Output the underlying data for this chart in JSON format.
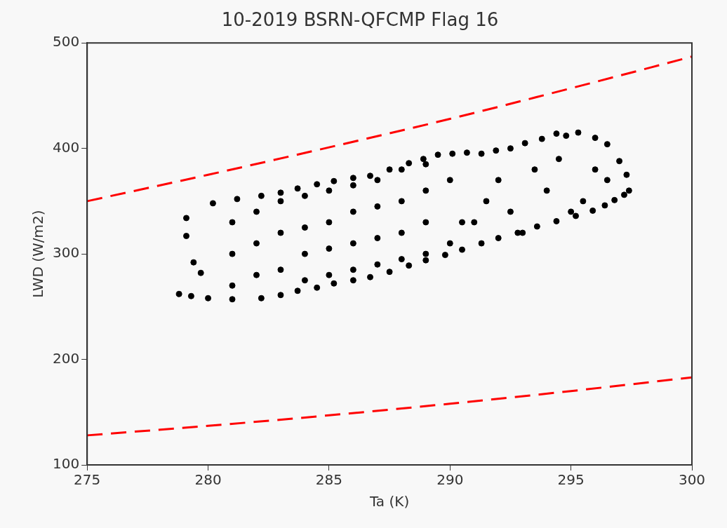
{
  "chart_data": {
    "type": "scatter",
    "title": "10-2019 BSRN-QFCMP Flag 16",
    "xlabel": "Ta (K)",
    "ylabel": "LWD (W/m2)",
    "xlim": [
      275,
      300
    ],
    "xticks": [
      275,
      280,
      285,
      290,
      295,
      300
    ],
    "ylim": [
      100,
      500
    ],
    "yticks": [
      100,
      200,
      300,
      400,
      500
    ],
    "grid": false,
    "marker": "circle",
    "series": [
      {
        "color": "#000000",
        "x": [
          278.8,
          279.3,
          280.0,
          281.0,
          282.2,
          283.0,
          283.7,
          284.5,
          285.2,
          286.0,
          286.7,
          287.5,
          288.3,
          289.0,
          289.8,
          290.5,
          291.3,
          292.0,
          292.8,
          293.6,
          294.4,
          295.2,
          295.9,
          296.4,
          296.8,
          297.2,
          297.4,
          297.3,
          297.0,
          296.5,
          296.0,
          295.3,
          294.8,
          294.4,
          293.8,
          293.1,
          292.5,
          291.9,
          291.3,
          290.7,
          290.1,
          289.5,
          288.9,
          288.3,
          287.5,
          286.7,
          286.0,
          285.2,
          284.5,
          283.7,
          283.0,
          282.2,
          281.2,
          280.2,
          279.1,
          279.1,
          279.4,
          279.7,
          281.0,
          281.0,
          281.0,
          282.0,
          282.0,
          282.0,
          283.0,
          283.0,
          283.0,
          284.0,
          284.0,
          284.0,
          284.0,
          285.0,
          285.0,
          285.0,
          285.0,
          286.0,
          286.0,
          286.0,
          286.0,
          287.0,
          287.0,
          287.0,
          287.0,
          288.0,
          288.0,
          288.0,
          288.0,
          289.0,
          289.0,
          289.0,
          289.0,
          290.0,
          290.0,
          290.5,
          291.5,
          292.0,
          292.5,
          293.5,
          294.0,
          294.5,
          295.5,
          296.0,
          296.5,
          295.0,
          293.0,
          291.0
        ],
        "values": [
          262,
          260,
          258,
          257,
          258,
          261,
          265,
          268,
          272,
          275,
          278,
          283,
          289,
          294,
          299,
          304,
          310,
          315,
          320,
          326,
          331,
          336,
          341,
          346,
          351,
          356,
          360,
          375,
          388,
          404,
          410,
          415,
          412,
          414,
          409,
          405,
          400,
          398,
          395,
          396,
          395,
          394,
          390,
          386,
          380,
          374,
          372,
          369,
          366,
          362,
          358,
          355,
          352,
          348,
          334,
          317,
          292,
          282,
          270,
          300,
          330,
          280,
          310,
          340,
          285,
          320,
          350,
          275,
          300,
          325,
          355,
          280,
          305,
          330,
          360,
          285,
          310,
          340,
          365,
          290,
          315,
          345,
          370,
          295,
          320,
          350,
          380,
          300,
          330,
          360,
          385,
          310,
          370,
          330,
          350,
          370,
          340,
          380,
          360,
          390,
          350,
          380,
          370,
          340,
          320,
          330
        ]
      },
      {
        "type": "line",
        "color": "#ff0000",
        "line_style": "dashed",
        "marker": "none",
        "x": [
          275,
          280,
          285,
          290,
          295,
          300
        ],
        "values": [
          350,
          375,
          401,
          428,
          457,
          487
        ]
      },
      {
        "type": "line",
        "color": "#ff0000",
        "line_style": "dashed",
        "marker": "none",
        "x": [
          275,
          280,
          285,
          290,
          295,
          300
        ],
        "values": [
          128,
          137,
          147,
          158,
          170,
          183
        ]
      }
    ]
  }
}
